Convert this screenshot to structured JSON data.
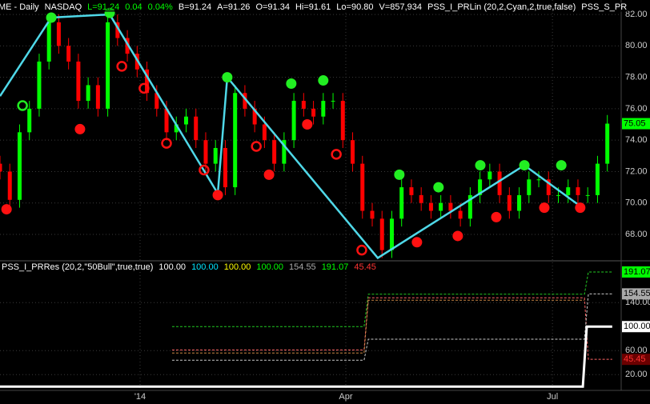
{
  "chart_data": [
    {
      "type": "candlestick",
      "legend": [
        {
          "text": "CME - Daily",
          "color": "#ffffff"
        },
        {
          "text": "NASDAQ",
          "color": "#ffffff"
        },
        {
          "text": "L=91.24",
          "color": "#00ff00"
        },
        {
          "text": "0.04",
          "color": "#00ff00"
        },
        {
          "text": "0.04%",
          "color": "#00ff00"
        },
        {
          "text": "B=91.24",
          "color": "#ffffff"
        },
        {
          "text": "A=91.26",
          "color": "#ffffff"
        },
        {
          "text": "O=91.34",
          "color": "#ffffff"
        },
        {
          "text": "Hi=91.61",
          "color": "#ffffff"
        },
        {
          "text": "Lo=90.80",
          "color": "#ffffff"
        },
        {
          "text": "V=857,934",
          "color": "#ffffff"
        },
        {
          "text": "PSS_I_PRLin (20,2,Cyan,2,true,false)",
          "color": "#ffffff"
        },
        {
          "text": "PSS_S_PR",
          "color": "#ffffff"
        }
      ],
      "x": [
        0,
        3,
        6,
        9,
        12,
        15,
        18,
        21,
        24,
        27,
        30,
        33,
        36,
        39,
        42,
        45,
        48,
        51,
        54,
        57,
        60,
        63,
        66,
        69,
        72,
        75,
        78,
        81,
        84,
        87,
        90,
        93,
        96,
        99,
        102,
        105,
        108,
        111,
        114,
        117,
        120,
        123,
        126,
        129,
        132,
        135,
        138,
        141,
        144,
        147,
        150,
        153,
        156,
        159,
        162,
        165,
        168,
        171,
        174,
        177,
        180,
        183,
        186
      ],
      "open": [
        72.5,
        72,
        70.2,
        74.5,
        76,
        79,
        81.5,
        80,
        79,
        76.5,
        77.5,
        76,
        81.5,
        80.5,
        79.5,
        78.5,
        77,
        76,
        74.5,
        75,
        75.5,
        74,
        72.5,
        73.5,
        71,
        77,
        76,
        75,
        74,
        72.5,
        74,
        76.5,
        76,
        75.5,
        76.5,
        76.5,
        74,
        72.5,
        69.5,
        69,
        67,
        69,
        71,
        70.5,
        70,
        69.5,
        70,
        69.5,
        69,
        70.5,
        71.5,
        72,
        70.5,
        69.5,
        70.5,
        71.5,
        71.5,
        70.5,
        70.5,
        71,
        70.5,
        70.5,
        72.5
      ],
      "high": [
        73,
        72.5,
        75,
        76.5,
        79.5,
        82,
        82,
        80.5,
        79.5,
        78,
        78,
        82,
        82,
        81,
        80,
        79,
        77.5,
        76.5,
        75.5,
        76,
        76,
        74.5,
        74,
        74,
        77.5,
        77.5,
        76.5,
        75.5,
        74.5,
        74.5,
        77,
        77,
        76.5,
        77,
        77,
        77,
        74.5,
        73,
        70,
        69.5,
        69.5,
        71.5,
        71.5,
        71,
        70.5,
        70.5,
        70.5,
        70,
        71,
        72,
        72.5,
        72.5,
        71,
        71,
        72,
        72,
        72,
        71,
        71.5,
        71.5,
        71,
        73,
        75.6
      ],
      "low": [
        71.5,
        69.7,
        69.7,
        74,
        75.5,
        78.5,
        79.5,
        78.5,
        76,
        76,
        75.5,
        75.5,
        80,
        79,
        78,
        76.5,
        75.5,
        74,
        74,
        74.5,
        73.5,
        72,
        72,
        70.5,
        70.5,
        75.5,
        74.5,
        73.5,
        72,
        72,
        73.5,
        75.5,
        75,
        75,
        76,
        73.5,
        72,
        69,
        68.5,
        66.5,
        66.5,
        68.5,
        70,
        69.5,
        69,
        69,
        69,
        68.5,
        68.5,
        70,
        71,
        70,
        69,
        69,
        70,
        71,
        70,
        70,
        70,
        70,
        70,
        70,
        72
      ],
      "close": [
        72,
        70.2,
        74.5,
        76,
        79,
        81.5,
        80,
        79,
        76.5,
        77.5,
        76,
        81.5,
        80.5,
        79.5,
        78.5,
        77,
        76,
        74.5,
        75,
        75.5,
        74,
        72.5,
        73.5,
        71,
        77,
        76,
        75,
        74,
        72.5,
        74,
        76.5,
        76,
        75.5,
        76.5,
        76.5,
        74,
        72.5,
        69.5,
        69,
        67,
        69,
        71,
        70.5,
        70,
        69.5,
        70,
        69.5,
        69,
        70.5,
        71.5,
        72,
        70.5,
        69.5,
        70.5,
        71.5,
        71.5,
        70.5,
        70.5,
        71,
        70.5,
        70.5,
        72.5,
        75.05
      ],
      "up_color": "#00ff00",
      "down_color": "#ff0000",
      "xlim": [
        0,
        190
      ],
      "xticks": [
        {
          "value": 42.9,
          "label": "'14"
        },
        {
          "value": 105.9,
          "label": "Apr"
        },
        {
          "value": 169.2,
          "label": "Jul"
        }
      ],
      "ylim": [
        66.37,
        82.92
      ],
      "yticks": [
        {
          "value": 68,
          "label": "68.00"
        },
        {
          "value": 70,
          "label": "70.00"
        },
        {
          "value": 72,
          "label": "72.00"
        },
        {
          "value": 74,
          "label": "74.00"
        },
        {
          "value": 76,
          "label": "76.00"
        },
        {
          "value": 78,
          "label": "78.00"
        },
        {
          "value": 80,
          "label": "80.00"
        },
        {
          "value": 82,
          "label": "82.00"
        }
      ],
      "grid": true,
      "zigzag": {
        "color": "#4fd8e8",
        "x": [
          0,
          15.7,
          33.6,
          66.7,
          69.6,
          115.7,
          160.6,
          177.7
        ],
        "values": [
          76.8,
          81.8,
          82.0,
          70.6,
          78.0,
          66.5,
          72.4,
          69.8
        ]
      },
      "pivot_highs": {
        "color": "#22ee22",
        "x": [
          15.7,
          33.6,
          69.6,
          89.2,
          99,
          122.3,
          134.3,
          147.1,
          160.6,
          171.9
        ],
        "values": [
          81.8,
          82.1,
          78.0,
          77.6,
          77.8,
          71.8,
          71.0,
          72.4,
          72.4,
          72.4
        ]
      },
      "pivot_highs_open": {
        "color": "#22ee22",
        "x": [
          6.9
        ],
        "values": [
          76.2
        ]
      },
      "pivot_lows": {
        "color": "#ff1111",
        "x": [
          2,
          24.5,
          66.7,
          82.4,
          94.1,
          127.7,
          140.2,
          152,
          166.7,
          177.7
        ],
        "values": [
          69.6,
          74.7,
          70.5,
          71.8,
          75.0,
          67.5,
          67.9,
          69.1,
          69.7,
          69.7
        ]
      },
      "pivot_lows_open": {
        "color": "#ff1111",
        "x": [
          37.3,
          44.1,
          51,
          62.5,
          78.5,
          103,
          110.8
        ],
        "values": [
          78.7,
          77.3,
          73.8,
          72.1,
          73.6,
          73.1,
          67.0
        ]
      },
      "last_value": {
        "value": 75.05,
        "color": "#00ff00"
      }
    },
    {
      "type": "line",
      "legend": [
        {
          "text": "PSS_I_PRRes (20,2,\"50Bull\",true,true)",
          "color": "#ffffff"
        },
        {
          "text": "100.00",
          "color": "#ffffff"
        },
        {
          "text": "100.00",
          "color": "#00e5ff"
        },
        {
          "text": "100.00",
          "color": "#ffff00"
        },
        {
          "text": "100.00",
          "color": "#00ff00"
        },
        {
          "text": "154.55",
          "color": "#aaaaaa"
        },
        {
          "text": "191.07",
          "color": "#00ff00"
        },
        {
          "text": "45.45",
          "color": "#ff3333"
        }
      ],
      "xlim": [
        0,
        190
      ],
      "ylim": [
        -5,
        207
      ],
      "yticks": [
        {
          "value": 20,
          "label": "20.00"
        },
        {
          "value": 60,
          "label": "60.00"
        },
        {
          "value": 140,
          "label": "140.00"
        }
      ],
      "series": [
        {
          "color": "#22cc22",
          "dashed": true,
          "x": [
            52.7,
            111.5,
            112.8,
            179,
            180.2,
            187.5
          ],
          "values": [
            100,
            100,
            154,
            154,
            191,
            191
          ]
        },
        {
          "color": "#ff6666",
          "dashed": true,
          "x": [
            52.7,
            111.5,
            112.8,
            179,
            180.2,
            187.5
          ],
          "values": [
            61,
            61,
            148,
            148,
            45.45,
            45.45
          ]
        },
        {
          "color": "#cc8844",
          "dashed": true,
          "x": [
            52.7,
            111.5,
            112.8,
            179
          ],
          "values": [
            56,
            56,
            144,
            144
          ]
        },
        {
          "color": "#cccccc",
          "dashed": true,
          "x": [
            52.7,
            111.5,
            112.8,
            179,
            180.2,
            187.5
          ],
          "values": [
            44,
            44,
            79,
            79,
            154.55,
            154.55
          ]
        },
        {
          "color": "#ffffff",
          "dashed": false,
          "x": [
            0,
            178.5,
            179.7,
            187.5
          ],
          "values": [
            0,
            0,
            100,
            100
          ]
        }
      ],
      "value_boxes": [
        {
          "value": 191.07,
          "color": "#00ff00",
          "text_color": "#000000"
        },
        {
          "value": 154.55,
          "color": "#aaaaaa",
          "text_color": "#000000"
        },
        {
          "value": 100,
          "label": "100.00",
          "color": "#ffffff",
          "text_color": "#000000"
        },
        {
          "value": 45.45,
          "color": "#6b0000",
          "text_color": "#ff3333"
        }
      ]
    }
  ]
}
